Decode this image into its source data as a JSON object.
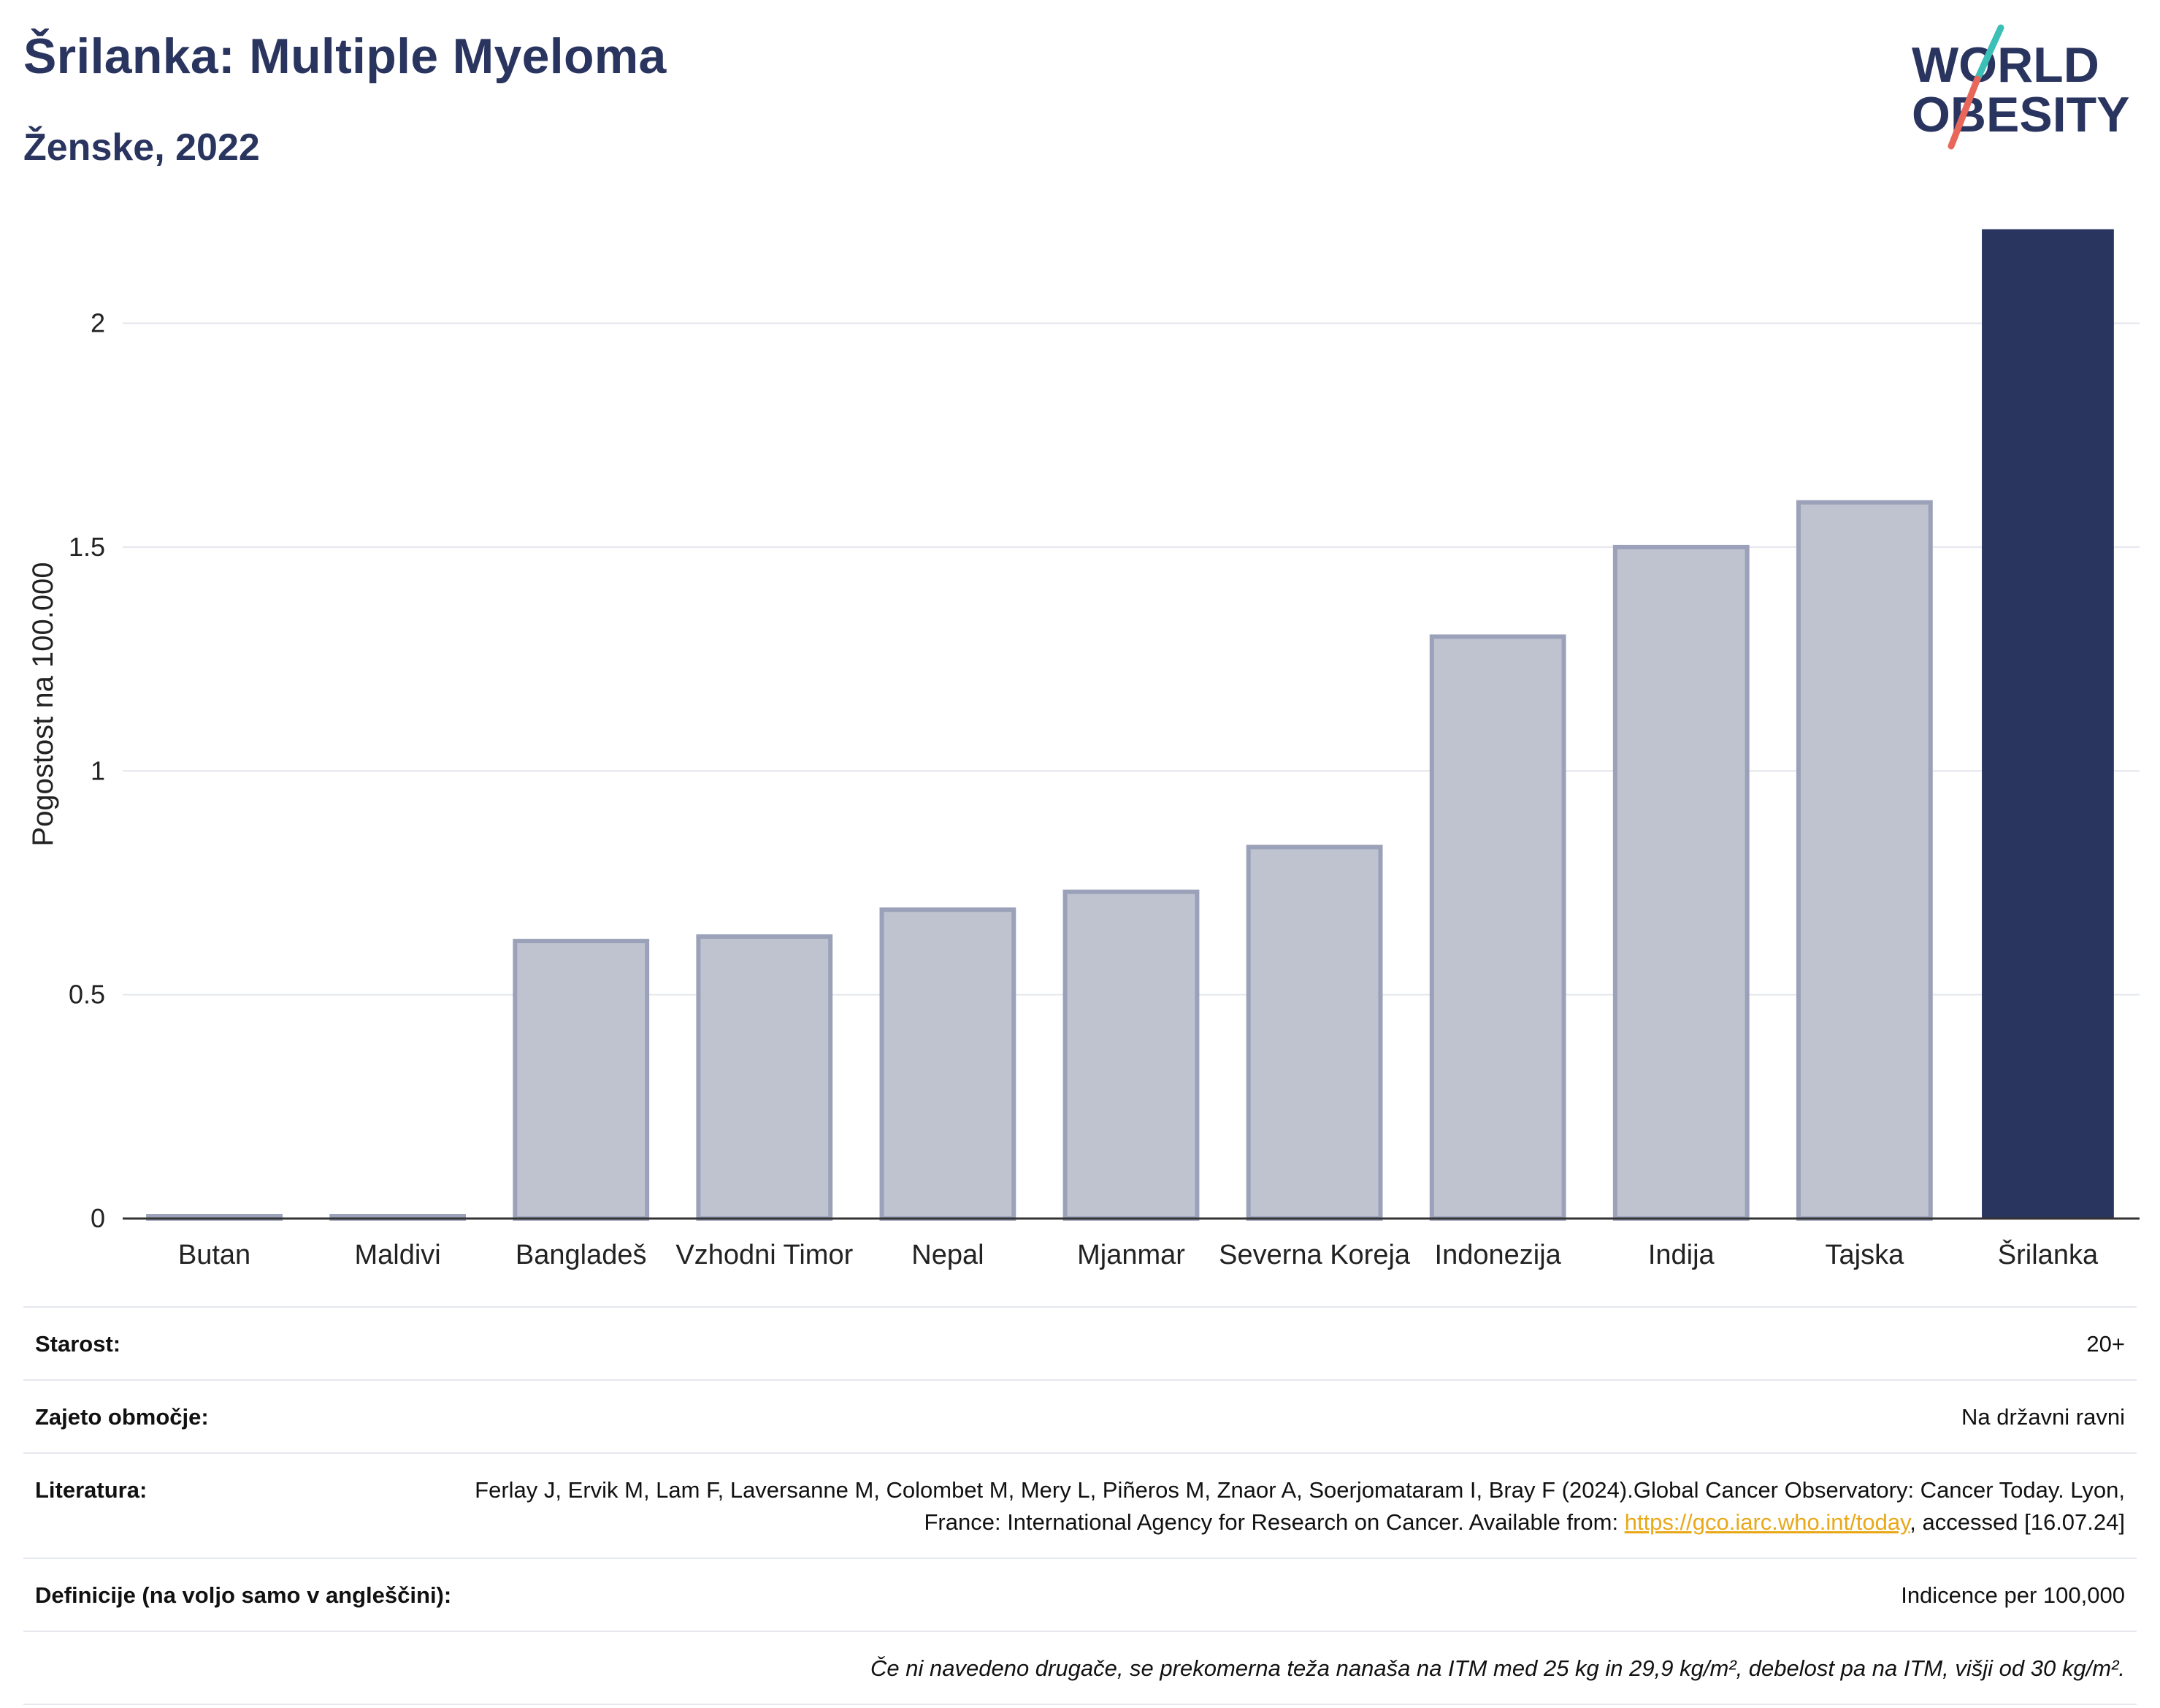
{
  "header": {
    "title": "Šrilanka: Multiple Myeloma",
    "subtitle": "Ženske, 2022"
  },
  "logo": {
    "line1": "WORLD",
    "line2": "OBESITY",
    "colors": {
      "text": "#2a355f",
      "slash_top": "#3bbfb7",
      "slash_bottom": "#e8665a"
    }
  },
  "chart_data": {
    "type": "bar",
    "categories": [
      "Butan",
      "Maldivi",
      "Bangladeš",
      "Vzhodni Timor",
      "Nepal",
      "Mjanmar",
      "Severna Koreja",
      "Indonezija",
      "Indija",
      "Tajska",
      "Šrilanka"
    ],
    "values": [
      0.0,
      0.0,
      0.62,
      0.63,
      0.69,
      0.73,
      0.83,
      1.3,
      1.5,
      1.6,
      2.21
    ],
    "highlight": "Šrilanka",
    "ylabel": "Pogostost na 100.000",
    "ylim": [
      0,
      2.2
    ],
    "yticks": [
      0,
      0.5,
      1,
      1.5,
      2
    ],
    "ytick_labels": [
      "0",
      "0.5",
      "1",
      "1.5",
      "2"
    ],
    "grid": true,
    "colors": {
      "highlight": "#2a355f",
      "other_fill": "#bfc3d0",
      "other_stroke": "#9aa1b8"
    }
  },
  "meta": {
    "age_label": "Starost:",
    "age_value": "20+",
    "coverage_label": "Zajeto območje:",
    "coverage_value": "Na državni ravni",
    "references_label": "Literatura:",
    "references_text_1": "Ferlay J, Ervik M, Lam F, Laversanne M, Colombet M, Mery L, Piñeros M, Znaor A, Soerjomataram I, Bray F (2024).Global Cancer Observatory: Cancer Today. Lyon, France: International Agency for Research on Cancer. Available from: ",
    "references_link": "https://gco.iarc.who.int/today",
    "references_text_2": ", accessed [16.07.24]",
    "definitions_label": "Definicije (na voljo samo v angleščini):",
    "definitions_value": "Indicence per 100,000",
    "note": "Če ni navedeno drugače, se prekomerna teža nanaša na ITM med 25 kg in 29,9 kg/m², debelost pa na ITM, višji od 30 kg/m²."
  }
}
